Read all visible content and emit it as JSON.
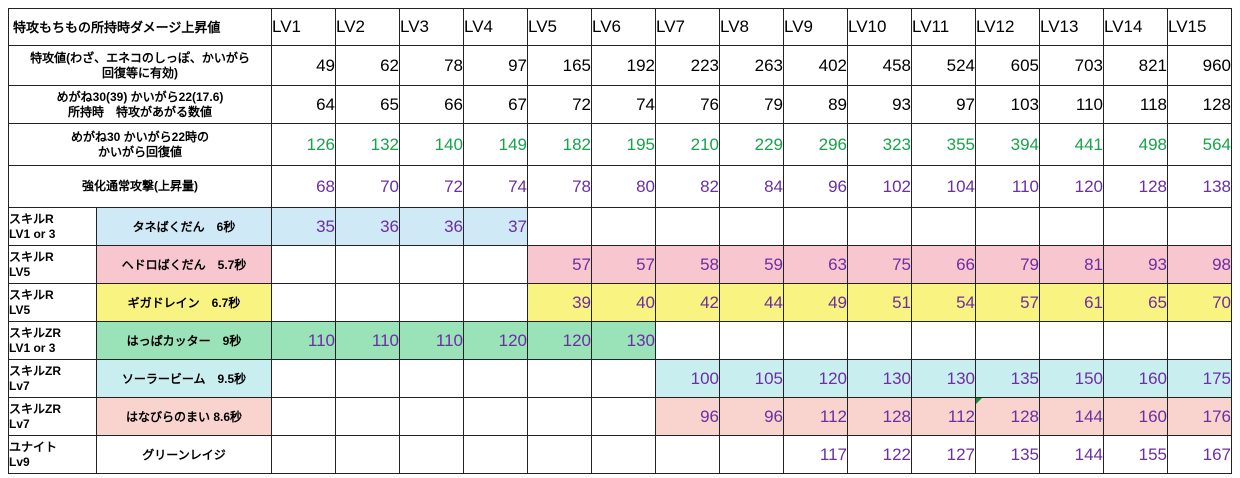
{
  "header": {
    "title": "特攻もちもの所持時ダメージ上昇値",
    "levels": [
      "LV1",
      "LV2",
      "LV3",
      "LV4",
      "LV5",
      "LV6",
      "LV7",
      "LV8",
      "LV9",
      "LV10",
      "LV11",
      "LV12",
      "LV13",
      "LV14",
      "LV15"
    ]
  },
  "rows": [
    {
      "label_lines": [
        "特攻値(わざ、エネコのしっぽ、かいがら",
        "回復等に有効)"
      ],
      "values": [
        "49",
        "62",
        "78",
        "97",
        "165",
        "192",
        "223",
        "263",
        "402",
        "458",
        "524",
        "605",
        "703",
        "821",
        "960"
      ],
      "color": "black"
    },
    {
      "label_lines": [
        "めがね30(39) かいがら22(17.6)",
        "所持時　特攻があがる数値"
      ],
      "values": [
        "64",
        "65",
        "66",
        "67",
        "72",
        "74",
        "76",
        "79",
        "89",
        "93",
        "97",
        "103",
        "110",
        "118",
        "128"
      ],
      "color": "black"
    },
    {
      "label_lines": [
        "めがね30 かいがら22時の",
        "かいがら回復値"
      ],
      "values": [
        "126",
        "132",
        "140",
        "149",
        "182",
        "195",
        "210",
        "229",
        "296",
        "323",
        "355",
        "394",
        "441",
        "498",
        "564"
      ],
      "color": "green"
    },
    {
      "label_lines": [
        "強化通常攻撃(上昇量)"
      ],
      "values": [
        "68",
        "70",
        "72",
        "74",
        "78",
        "80",
        "82",
        "84",
        "96",
        "102",
        "104",
        "110",
        "120",
        "128",
        "138"
      ],
      "color": "purple"
    }
  ],
  "skills": [
    {
      "cat_lines": [
        "スキルR",
        "LV1 or 3"
      ],
      "name": "タネばくだん　6秒",
      "bg": "blue",
      "values": [
        "35",
        "36",
        "36",
        "37",
        "",
        "",
        "",
        "",
        "",
        "",
        "",
        "",
        "",
        "",
        ""
      ]
    },
    {
      "cat_lines": [
        "スキルR",
        "LV5"
      ],
      "name": "ヘドロばくだん　5.7秒",
      "bg": "pink",
      "values": [
        "",
        "",
        "",
        "",
        "57",
        "57",
        "58",
        "59",
        "63",
        "75",
        "66",
        "79",
        "81",
        "93",
        "98"
      ]
    },
    {
      "cat_lines": [
        "スキルR",
        "LV5"
      ],
      "name": "ギガドレイン　6.7秒",
      "bg": "yellow",
      "values": [
        "",
        "",
        "",
        "",
        "39",
        "40",
        "42",
        "44",
        "49",
        "51",
        "54",
        "57",
        "61",
        "65",
        "70"
      ]
    },
    {
      "cat_lines": [
        "スキルZR",
        "LV1 or 3"
      ],
      "name": "はっぱカッター　9秒",
      "bg": "green",
      "values": [
        "110",
        "110",
        "110",
        "120",
        "120",
        "130",
        "",
        "",
        "",
        "",
        "",
        "",
        "",
        "",
        ""
      ]
    },
    {
      "cat_lines": [
        "スキルZR",
        "Lv7"
      ],
      "name": "ソーラービーム　9.5秒",
      "bg": "cyan",
      "values": [
        "",
        "",
        "",
        "",
        "",
        "",
        "100",
        "105",
        "120",
        "130",
        "130",
        "135",
        "150",
        "160",
        "175"
      ]
    },
    {
      "cat_lines": [
        "スキルZR",
        "Lv7"
      ],
      "name": "はなびらのまい 8.6秒",
      "bg": "salmon",
      "values": [
        "",
        "",
        "",
        "",
        "",
        "",
        "96",
        "96",
        "112",
        "128",
        "112",
        "128",
        "144",
        "160",
        "176"
      ]
    },
    {
      "cat_lines": [
        "ユナイト",
        "Lv9"
      ],
      "name": "グリーンレイジ",
      "bg": "none",
      "values": [
        "",
        "",
        "",
        "",
        "",
        "",
        "",
        "",
        "117",
        "122",
        "127",
        "135",
        "144",
        "155",
        "167"
      ]
    }
  ]
}
